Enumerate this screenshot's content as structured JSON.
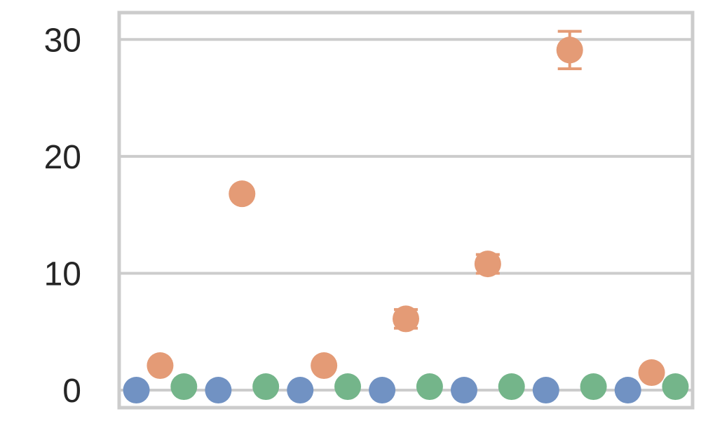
{
  "chart_data": {
    "type": "scatter",
    "title": "",
    "xlabel": "",
    "ylabel": "",
    "ylim": [
      -1.5,
      32.3
    ],
    "yticks": [
      0,
      10,
      20,
      30
    ],
    "ytick_labels": [
      "0",
      "10",
      "20",
      "30"
    ],
    "grid": "horizontal",
    "legend": "none",
    "groups": 7,
    "series": [
      {
        "color": "#7192c3",
        "marker": "circle",
        "values": [
          0.0,
          0.0,
          0.0,
          0.0,
          0.0,
          0.0,
          0.0
        ],
        "errors": [
          0.1,
          0.1,
          0.1,
          0.1,
          0.1,
          0.1,
          0.1
        ]
      },
      {
        "color": "#e49b76",
        "marker": "circle",
        "values": [
          2.1,
          16.8,
          2.1,
          6.1,
          10.8,
          29.1,
          1.5
        ],
        "errors": [
          0.2,
          0.4,
          0.2,
          0.8,
          0.8,
          1.6,
          0.3
        ]
      },
      {
        "color": "#74b58a",
        "marker": "circle",
        "values": [
          0.3,
          0.3,
          0.3,
          0.3,
          0.3,
          0.3,
          0.3
        ],
        "errors": [
          0.1,
          0.1,
          0.1,
          0.1,
          0.1,
          0.1,
          0.1
        ]
      }
    ]
  }
}
